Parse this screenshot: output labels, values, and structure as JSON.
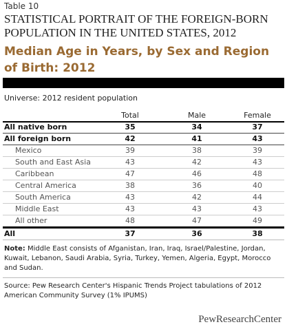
{
  "header": {
    "table_number": "Table 10",
    "title": "STATISTICAL PORTRAIT OF THE FOREIGN-BORN POPULATION IN THE UNITED STATES, 2012",
    "subtitle": "Median Age in Years, by Sex and Region of Birth: 2012"
  },
  "table": {
    "universe": "Universe: 2012 resident population",
    "columns": [
      "Total",
      "Male",
      "Female"
    ],
    "rows": [
      {
        "label": "All native born",
        "values": [
          35,
          34,
          37
        ]
      },
      {
        "label": "All foreign born",
        "values": [
          42,
          41,
          43
        ],
        "subrows": [
          {
            "label": "Mexico",
            "values": [
              39,
              38,
              39
            ]
          },
          {
            "label": "South and East Asia",
            "values": [
              43,
              42,
              43
            ]
          },
          {
            "label": "Caribbean",
            "values": [
              47,
              46,
              48
            ]
          },
          {
            "label": "Central America",
            "values": [
              38,
              36,
              40
            ]
          },
          {
            "label": "South America",
            "values": [
              43,
              42,
              44
            ]
          },
          {
            "label": "Middle East",
            "values": [
              43,
              43,
              43
            ]
          },
          {
            "label": "All other",
            "values": [
              48,
              47,
              49
            ]
          }
        ]
      }
    ],
    "total": {
      "label": "All",
      "values": [
        37,
        36,
        38
      ]
    }
  },
  "footer": {
    "note": {
      "label": "Note:",
      "text": "Middle East consists of Afganistan, Iran, Iraq, Israel/Palestine, Jordan, Kuwait, Lebanon, Saudi Arabia, Syria, Turkey, Yemen, Algeria, Egypt, Morocco and Sudan."
    },
    "source": "Source: Pew Research Center's Hispanic Trends Project tabulations of 2012 American Community Survey (1% IPUMS)",
    "brand": "PewResearchCenter"
  }
}
